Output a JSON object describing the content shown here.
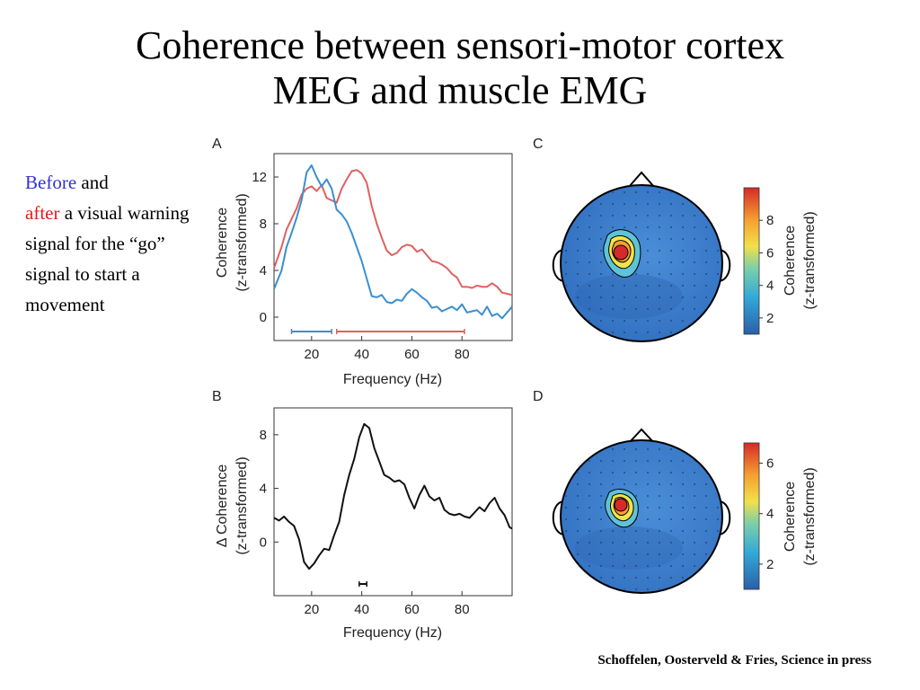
{
  "slide": {
    "title_line1": "Coherence between sensori-motor cortex",
    "title_line2": "MEG and muscle EMG",
    "note": {
      "before": "Before",
      "and": " and",
      "after": "after",
      "rest": " a visual warning signal for the “go” signal to start a movement"
    },
    "citation": "Schoffelen, Oosterveld & Fries, Science in press"
  },
  "colors": {
    "before": "#3a8fd0",
    "after": "#e06060",
    "difference": "#111111"
  },
  "chart_data": [
    {
      "panel": "A",
      "type": "line",
      "xlabel": "Frequency (Hz)",
      "ylabel_line1": "Coherence",
      "ylabel_line2": "(z-transformed)",
      "xlim": [
        5,
        100
      ],
      "ylim": [
        -2,
        14
      ],
      "xticks": [
        20,
        40,
        60,
        80
      ],
      "yticks": [
        0,
        4,
        8,
        12
      ],
      "series": [
        {
          "color": "#e06060",
          "x": [
            5,
            8,
            10,
            12,
            14,
            16,
            18,
            20,
            22,
            24,
            26,
            28,
            30,
            32,
            34,
            36,
            38,
            40,
            42,
            44,
            46,
            48,
            50,
            52,
            54,
            56,
            58,
            60,
            62,
            64,
            66,
            68,
            70,
            72,
            74,
            76,
            78,
            80,
            82,
            84,
            86,
            88,
            90,
            92,
            94,
            96,
            98,
            100
          ],
          "y": [
            4.2,
            6,
            7.5,
            8.4,
            9.3,
            10.5,
            11,
            11.2,
            10.8,
            11.3,
            10.2,
            10,
            9.8,
            11,
            11.8,
            12.5,
            12.6,
            12.3,
            11.5,
            9.5,
            8,
            6.8,
            5.7,
            5.3,
            5.5,
            6,
            6.2,
            6.1,
            5.6,
            5.8,
            5.3,
            4.8,
            4.7,
            4.5,
            4.2,
            3.7,
            3.4,
            2.6,
            2.6,
            2.5,
            2.7,
            2.6,
            2.6,
            2.9,
            2.6,
            2.1,
            2,
            1.9
          ]
        },
        {
          "color": "#3a8fd0",
          "x": [
            5,
            8,
            10,
            12,
            14,
            16,
            18,
            20,
            22,
            24,
            26,
            28,
            30,
            32,
            34,
            36,
            38,
            40,
            42,
            44,
            46,
            48,
            50,
            52,
            54,
            56,
            58,
            60,
            62,
            64,
            66,
            68,
            70,
            72,
            74,
            76,
            78,
            80,
            82,
            84,
            86,
            88,
            90,
            92,
            94,
            96,
            98,
            100
          ],
          "y": [
            2.4,
            4,
            6,
            7.2,
            8.5,
            10,
            12.4,
            13,
            12,
            11.2,
            11.8,
            11,
            9.2,
            8.8,
            8.2,
            7.2,
            6,
            4.8,
            3.3,
            1.8,
            1.7,
            1.9,
            1.3,
            1.2,
            1.5,
            1.4,
            2,
            2.4,
            2.1,
            1.7,
            1.4,
            0.8,
            0.9,
            0.5,
            0.7,
            0.9,
            0.6,
            1.1,
            0.4,
            0.5,
            0.6,
            0.2,
            0.9,
            0.1,
            0.3,
            -0.1,
            0.4,
            0.9
          ]
        }
      ],
      "significance": [
        {
          "color": "#3a8fd0",
          "range": [
            12,
            28
          ]
        },
        {
          "color": "#e06060",
          "range": [
            30,
            81
          ]
        }
      ]
    },
    {
      "panel": "B",
      "type": "line",
      "xlabel": "Frequency (Hz)",
      "ylabel_line1": "Δ Coherence",
      "ylabel_line2": "(z-transformed)",
      "xlim": [
        5,
        100
      ],
      "ylim": [
        -4,
        10
      ],
      "xticks": [
        20,
        40,
        60,
        80
      ],
      "yticks": [
        0,
        4,
        8
      ],
      "series": [
        {
          "color": "#111111",
          "x": [
            5,
            7,
            9,
            11,
            13,
            15,
            17,
            19,
            21,
            23,
            25,
            27,
            29,
            31,
            33,
            35,
            37,
            39,
            41,
            43,
            45,
            47,
            49,
            51,
            53,
            55,
            57,
            59,
            61,
            63,
            65,
            67,
            69,
            71,
            73,
            75,
            77,
            79,
            81,
            83,
            85,
            87,
            89,
            91,
            93,
            95,
            97,
            99,
            100
          ],
          "y": [
            1.8,
            1.6,
            1.9,
            1.5,
            1.2,
            0.2,
            -1.5,
            -2,
            -1.6,
            -1,
            -0.5,
            -0.6,
            0.5,
            1.5,
            3.5,
            5,
            6.2,
            7.8,
            8.8,
            8.5,
            7,
            6,
            5,
            4.8,
            4.5,
            4.6,
            4.3,
            3.3,
            2.5,
            3.5,
            4.2,
            3.4,
            3.1,
            3.3,
            2.4,
            2.1,
            2,
            2.1,
            1.9,
            1.8,
            2.2,
            2.6,
            2.3,
            2.9,
            3.3,
            2.5,
            2,
            1.1,
            1
          ]
        }
      ],
      "significance": [
        {
          "color": "#111111",
          "range": [
            39,
            42
          ]
        }
      ]
    },
    {
      "panel": "C",
      "type": "heatmap",
      "colorbar_label_line1": "Coherence",
      "colorbar_label_line2": "(z-transformed)",
      "colorbar_ticks": [
        2,
        4,
        6,
        8
      ],
      "colorbar_range": [
        1,
        10
      ]
    },
    {
      "panel": "D",
      "type": "heatmap",
      "colorbar_label_line1": "Coherence",
      "colorbar_label_line2": "(z-transformed)",
      "colorbar_ticks": [
        2,
        4,
        6
      ],
      "colorbar_range": [
        1,
        6.8
      ]
    }
  ]
}
